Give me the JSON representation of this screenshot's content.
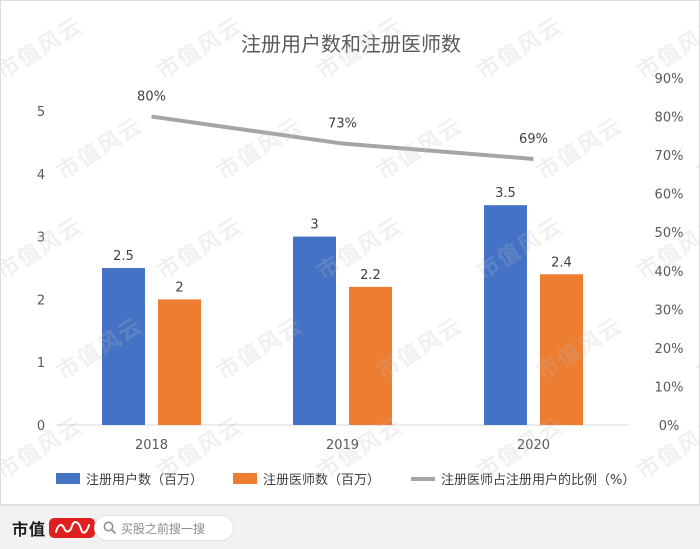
{
  "chart_data": {
    "type": "bar",
    "title": "注册用户数和注册医师数",
    "categories": [
      "2018",
      "2019",
      "2020"
    ],
    "series": [
      {
        "name": "注册用户数（百万）",
        "type": "bar",
        "axis": "left",
        "color": "#4472C4",
        "values": [
          2.5,
          3,
          3.5
        ],
        "labels": [
          "2.5",
          "3",
          "3.5"
        ]
      },
      {
        "name": "注册医师数（百万）",
        "type": "bar",
        "axis": "left",
        "color": "#ED7D31",
        "values": [
          2,
          2.2,
          2.4
        ],
        "labels": [
          "2",
          "2.2",
          "2.4"
        ]
      },
      {
        "name": "注册医师占注册用户的比例（%）",
        "type": "line",
        "axis": "right",
        "color": "#A5A5A5",
        "values": [
          80,
          73,
          69
        ],
        "labels": [
          "80%",
          "73%",
          "69%"
        ]
      }
    ],
    "y_left": {
      "min": 0,
      "max": 5,
      "ticks": [
        "0",
        "1",
        "2",
        "3",
        "4",
        "5"
      ]
    },
    "y_right": {
      "min": 0,
      "max": 90,
      "ticks": [
        "0%",
        "10%",
        "20%",
        "30%",
        "40%",
        "50%",
        "60%",
        "70%",
        "80%",
        "90%"
      ]
    },
    "legend_position": "bottom",
    "grid": false
  },
  "watermark": "市值风云",
  "footer": {
    "brand": "市值",
    "search_placeholder": "买股之前搜一搜"
  },
  "icons": {
    "search": "search-icon",
    "logo": "brand-logo-icon"
  }
}
